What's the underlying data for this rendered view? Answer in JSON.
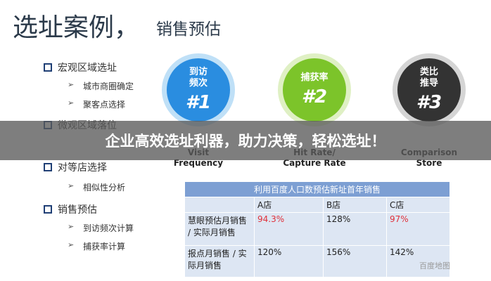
{
  "header": {
    "title": "选址案例，",
    "subtitle": "销售预估"
  },
  "steps": [
    {
      "label": "宏观区域选址",
      "items": [
        "城市商圈确定",
        "聚客点选择"
      ]
    },
    {
      "label": "微观区域落位",
      "items": []
    },
    {
      "label": "对等店选择",
      "items": [
        "相似性分析"
      ]
    },
    {
      "label": "销售预估",
      "items": [
        "到访频次计算",
        "捕获率计算"
      ]
    }
  ],
  "methods": [
    {
      "label": "到访\n频次",
      "number": "#1",
      "caption": "Visit\nFrequency"
    },
    {
      "label": "捕获率",
      "number": "#2",
      "caption": "Hit Rate/\nCapture Rate"
    },
    {
      "label": "类比\n推导",
      "number": "#3",
      "caption": "Comparison\nStore"
    }
  ],
  "table": {
    "title": "利用百度人口数预估新址首年销售",
    "columns": [
      "A店",
      "B店",
      "C店"
    ],
    "rows": [
      [
        "慧眼预估月销售 / 实际月销售",
        "94.3%",
        "128%",
        "97%"
      ],
      [
        "报点月销售 / 实际月销售",
        "120%",
        "156%",
        "142%"
      ]
    ]
  },
  "banner": "企业高效选址利器，助力决策，轻松选址！",
  "watermark": "百度地图"
}
